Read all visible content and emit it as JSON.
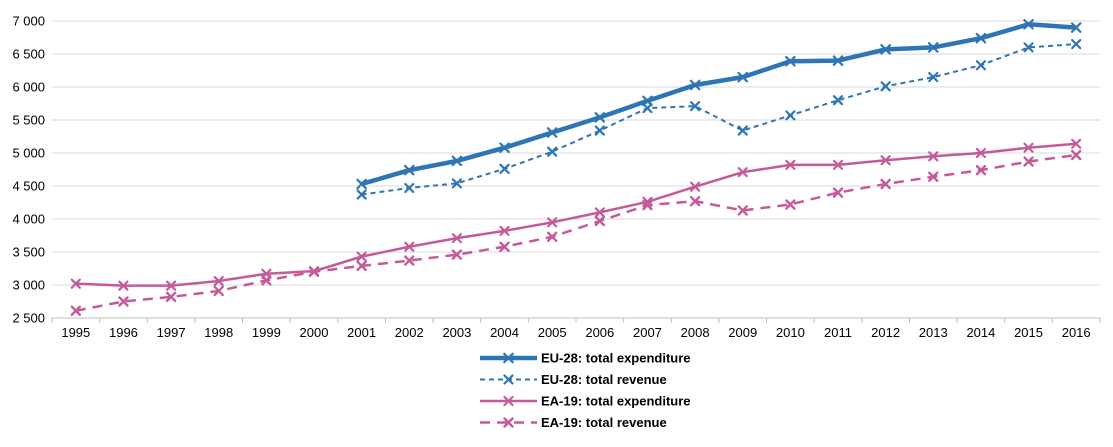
{
  "chart_data": {
    "type": "line",
    "title": "",
    "xlabel": "",
    "ylabel": "",
    "categories": [
      "1995",
      "1996",
      "1997",
      "1998",
      "1999",
      "2000",
      "2001",
      "2002",
      "2003",
      "2004",
      "2005",
      "2006",
      "2007",
      "2008",
      "2009",
      "2010",
      "2011",
      "2012",
      "2013",
      "2014",
      "2015",
      "2016"
    ],
    "ylim": [
      2500,
      7000
    ],
    "yticks": [
      2500,
      3000,
      3500,
      4000,
      4500,
      5000,
      5500,
      6000,
      6500,
      7000
    ],
    "ytick_labels": [
      "2 500",
      "3 000",
      "3 500",
      "4 000",
      "4 500",
      "5 000",
      "5 500",
      "6 000",
      "6 500",
      "7 000"
    ],
    "grid": true,
    "legend_position": "bottom",
    "series": [
      {
        "name": "EU-28: total expenditure",
        "color": "#2e75b6",
        "style": "solid-thick",
        "marker": "x",
        "values": [
          null,
          null,
          null,
          null,
          null,
          null,
          4530,
          4740,
          4880,
          5080,
          5310,
          5540,
          5790,
          6030,
          6150,
          6390,
          6400,
          6570,
          6600,
          6740,
          6950,
          6900
        ]
      },
      {
        "name": "EU-28: total revenue",
        "color": "#2e75b6",
        "style": "dashed",
        "marker": "x",
        "values": [
          null,
          null,
          null,
          null,
          null,
          null,
          4370,
          4470,
          4540,
          4760,
          5020,
          5340,
          5680,
          5710,
          5340,
          5570,
          5800,
          6010,
          6150,
          6330,
          6600,
          6650
        ]
      },
      {
        "name": "EA-19: total expenditure",
        "color": "#c55a9b",
        "style": "solid",
        "marker": "x",
        "values": [
          3020,
          2990,
          2990,
          3060,
          3170,
          3210,
          3430,
          3580,
          3710,
          3820,
          3950,
          4100,
          4260,
          4490,
          4710,
          4820,
          4820,
          4890,
          4950,
          5000,
          5080,
          5140
        ]
      },
      {
        "name": "EA-19: total revenue",
        "color": "#c55a9b",
        "style": "dashed-long",
        "marker": "x",
        "values": [
          2610,
          2750,
          2820,
          2910,
          3070,
          3200,
          3290,
          3370,
          3460,
          3580,
          3730,
          3970,
          4210,
          4270,
          4130,
          4220,
          4400,
          4530,
          4640,
          4740,
          4870,
          4970
        ]
      }
    ]
  }
}
